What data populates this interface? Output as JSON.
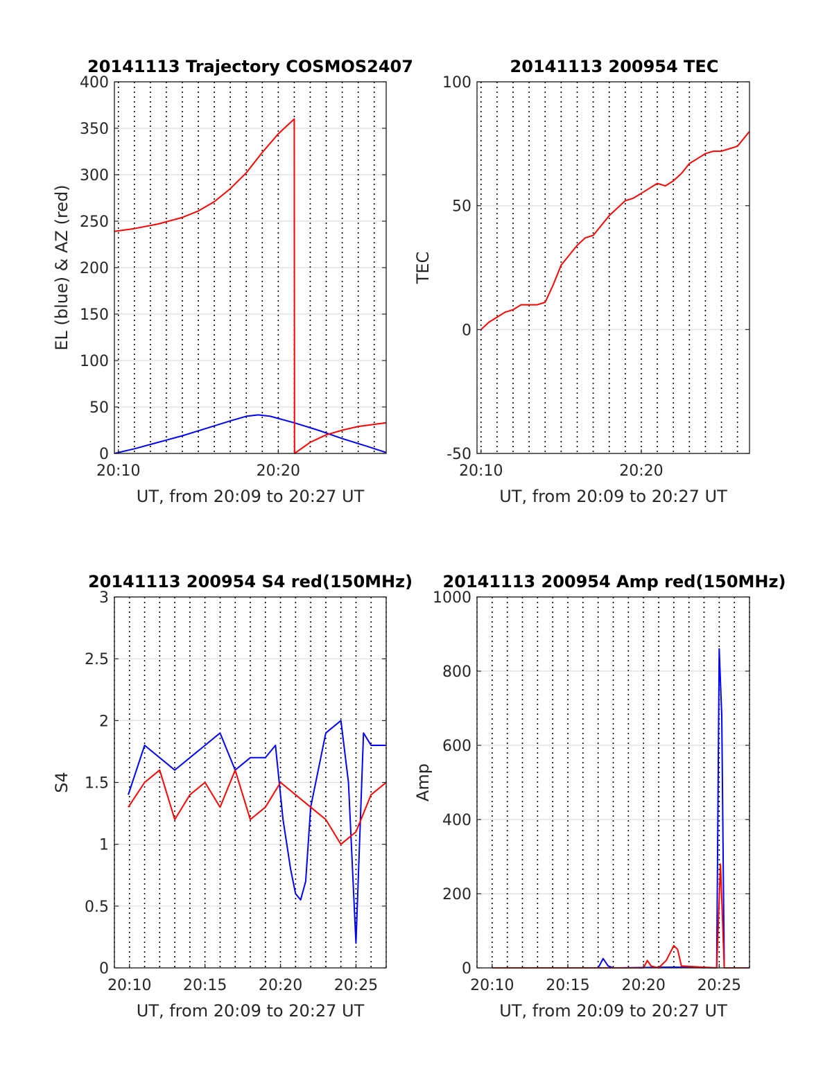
{
  "chart_data": [
    {
      "type": "line",
      "title": "20141113 Trajectory COSMOS2407",
      "xlabel": "UT, from 20:09 to 20:27 UT",
      "ylabel": "EL (blue) & AZ (red)",
      "xlim": [
        "20:09:45",
        "20:26:45"
      ],
      "ylim": [
        0,
        400
      ],
      "xticks": [
        "20:10",
        "20:20"
      ],
      "yticks": [
        0,
        50,
        100,
        150,
        200,
        250,
        300,
        350,
        400
      ],
      "grid": true,
      "series": [
        {
          "color": "#0000ff",
          "x": [
            "20:09:45",
            "20:11:00",
            "20:12:30",
            "20:14:00",
            "20:15:30",
            "20:17:00",
            "20:18:00",
            "20:18:45",
            "20:19:30",
            "20:21:00",
            "20:22:30",
            "20:24:00",
            "20:25:30",
            "20:26:45"
          ],
          "values": [
            0,
            5,
            12,
            19,
            27,
            35,
            40,
            41.5,
            40,
            33,
            25,
            16,
            8,
            1
          ]
        },
        {
          "color": "#ff0000",
          "x": [
            "20:09:45",
            "20:11:00",
            "20:12:30",
            "20:14:00",
            "20:15:00",
            "20:16:00",
            "20:17:00",
            "20:18:00",
            "20:19:00",
            "20:20:00",
            "20:21:00",
            "20:21:01",
            "20:22:00",
            "20:23:00",
            "20:24:00",
            "20:25:00",
            "20:26:45"
          ],
          "values": [
            239,
            242,
            247,
            254,
            261,
            271,
            285,
            302,
            324,
            344,
            360,
            0,
            12,
            20,
            25,
            29,
            33
          ]
        }
      ]
    },
    {
      "type": "line",
      "title": "20141113 200954 TEC",
      "xlabel": "UT, from 20:09 to 20:27 UT",
      "ylabel": "TEC",
      "xlim": [
        "20:09:45",
        "20:26:45"
      ],
      "ylim": [
        -50,
        100
      ],
      "xticks": [
        "20:10",
        "20:20"
      ],
      "yticks": [
        -50,
        0,
        50,
        100
      ],
      "grid": true,
      "series": [
        {
          "color": "#ff0000",
          "x": [
            "20:10:00",
            "20:10:30",
            "20:11:00",
            "20:11:30",
            "20:12:00",
            "20:12:30",
            "20:13:00",
            "20:13:30",
            "20:14:00",
            "20:14:30",
            "20:15:00",
            "20:15:30",
            "20:16:00",
            "20:16:30",
            "20:17:00",
            "20:17:30",
            "20:18:00",
            "20:18:30",
            "20:19:00",
            "20:19:30",
            "20:20:00",
            "20:20:30",
            "20:21:00",
            "20:21:30",
            "20:22:00",
            "20:22:30",
            "20:23:00",
            "20:23:30",
            "20:24:00",
            "20:24:30",
            "20:25:00",
            "20:25:30",
            "20:26:00",
            "20:26:45"
          ],
          "values": [
            0,
            3,
            5,
            7,
            8,
            10,
            10,
            10,
            11,
            18,
            26,
            30,
            34,
            37,
            38,
            42,
            46,
            49,
            52,
            53,
            55,
            57,
            59,
            58,
            60,
            63,
            67,
            69,
            71,
            72,
            72,
            73,
            74,
            80
          ]
        }
      ]
    },
    {
      "type": "line",
      "title": "20141113 200954 S4 red(150MHz)",
      "xlabel": "UT, from 20:09 to 20:27 UT",
      "ylabel": "S4",
      "xlim": [
        "20:09",
        "20:27"
      ],
      "ylim": [
        0,
        3
      ],
      "xticks": [
        "20:10",
        "20:15",
        "20:20",
        "20:25"
      ],
      "yticks": [
        0,
        0.5,
        1,
        1.5,
        2,
        2.5,
        3
      ],
      "grid": true,
      "series": [
        {
          "color": "#0000ff",
          "x": [
            "20:09:55",
            "20:11:00",
            "20:12:00",
            "20:13:00",
            "20:14:00",
            "20:15:00",
            "20:16:00",
            "20:17:00",
            "20:18:00",
            "20:19:00",
            "20:19:40",
            "20:20:10",
            "20:20:40",
            "20:21:00",
            "20:21:20",
            "20:21:40",
            "20:22:00",
            "20:23:00",
            "20:24:00",
            "20:24:30",
            "20:25:00",
            "20:25:30",
            "20:26:00",
            "20:27:00"
          ],
          "values": [
            1.4,
            1.8,
            1.7,
            1.6,
            1.7,
            1.8,
            1.9,
            1.6,
            1.7,
            1.7,
            1.8,
            1.2,
            0.8,
            0.6,
            0.55,
            0.7,
            1.3,
            1.9,
            2.0,
            1.5,
            0.2,
            1.9,
            1.8,
            1.8
          ]
        },
        {
          "color": "#ff0000",
          "x": [
            "20:09:55",
            "20:11:00",
            "20:12:00",
            "20:13:00",
            "20:14:00",
            "20:15:00",
            "20:16:00",
            "20:17:00",
            "20:18:00",
            "20:19:00",
            "20:20:00",
            "20:21:00",
            "20:22:00",
            "20:23:00",
            "20:24:00",
            "20:25:00",
            "20:26:00",
            "20:27:00"
          ],
          "values": [
            1.3,
            1.5,
            1.6,
            1.2,
            1.4,
            1.5,
            1.3,
            1.6,
            1.2,
            1.3,
            1.5,
            1.4,
            1.3,
            1.2,
            1.0,
            1.1,
            1.4,
            1.5
          ]
        }
      ]
    },
    {
      "type": "line",
      "title": "20141113 200954 Amp red(150MHz)",
      "xlabel": "UT, from 20:09 to 20:27 UT",
      "ylabel": "Amp",
      "xlim": [
        "20:09",
        "20:27"
      ],
      "ylim": [
        0,
        1000
      ],
      "xticks": [
        "20:10",
        "20:15",
        "20:20",
        "20:25"
      ],
      "yticks": [
        0,
        200,
        400,
        600,
        800,
        1000
      ],
      "grid": true,
      "series": [
        {
          "color": "#0000ff",
          "x": [
            "20:10:00",
            "20:17:00",
            "20:17:20",
            "20:17:40",
            "20:18:00",
            "20:22:00",
            "20:24:50",
            "20:25:00",
            "20:25:10",
            "20:25:20",
            "20:27:00"
          ],
          "values": [
            0,
            0,
            25,
            5,
            0,
            2,
            0,
            860,
            680,
            0,
            0
          ]
        },
        {
          "color": "#ff0000",
          "x": [
            "20:10:00",
            "20:20:00",
            "20:20:15",
            "20:20:30",
            "20:21:00",
            "20:21:30",
            "20:21:45",
            "20:22:00",
            "20:22:15",
            "20:22:30",
            "20:24:50",
            "20:25:05",
            "20:25:20",
            "20:27:00"
          ],
          "values": [
            0,
            0,
            20,
            5,
            0,
            20,
            40,
            60,
            50,
            5,
            0,
            280,
            0,
            0
          ]
        }
      ]
    }
  ]
}
